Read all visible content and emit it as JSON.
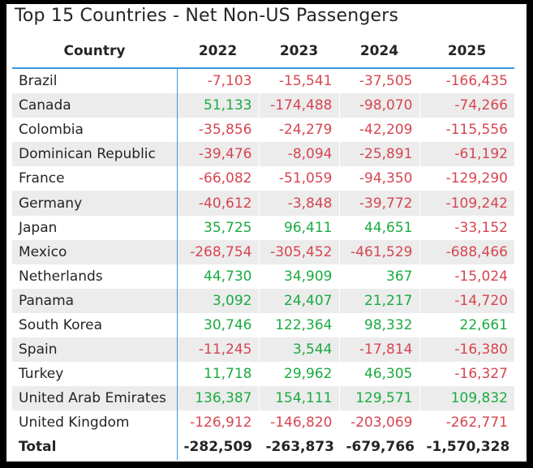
{
  "title": "Top 15 Countries - Net Non-US Passengers",
  "colors": {
    "positive": "#1aab40",
    "negative": "#d64550",
    "accent": "#3a96dd",
    "alt_row": "#ececec"
  },
  "columns": [
    "Country",
    "2022",
    "2023",
    "2024",
    "2025"
  ],
  "rows": [
    {
      "country": "Brazil",
      "values": [
        "-7,103",
        "-15,541",
        "-37,505",
        "-166,435"
      ]
    },
    {
      "country": "Canada",
      "values": [
        "51,133",
        "-174,488",
        "-98,070",
        "-74,266"
      ]
    },
    {
      "country": "Colombia",
      "values": [
        "-35,856",
        "-24,279",
        "-42,209",
        "-115,556"
      ]
    },
    {
      "country": "Dominican Republic",
      "values": [
        "-39,476",
        "-8,094",
        "-25,891",
        "-61,192"
      ]
    },
    {
      "country": "France",
      "values": [
        "-66,082",
        "-51,059",
        "-94,350",
        "-129,290"
      ]
    },
    {
      "country": "Germany",
      "values": [
        "-40,612",
        "-3,848",
        "-39,772",
        "-109,242"
      ]
    },
    {
      "country": "Japan",
      "values": [
        "35,725",
        "96,411",
        "44,651",
        "-33,152"
      ]
    },
    {
      "country": "Mexico",
      "values": [
        "-268,754",
        "-305,452",
        "-461,529",
        "-688,466"
      ]
    },
    {
      "country": "Netherlands",
      "values": [
        "44,730",
        "34,909",
        "367",
        "-15,024"
      ]
    },
    {
      "country": "Panama",
      "values": [
        "3,092",
        "24,407",
        "21,217",
        "-14,720"
      ]
    },
    {
      "country": "South Korea",
      "values": [
        "30,746",
        "122,364",
        "98,332",
        "22,661"
      ]
    },
    {
      "country": "Spain",
      "values": [
        "-11,245",
        "3,544",
        "-17,814",
        "-16,380"
      ]
    },
    {
      "country": "Turkey",
      "values": [
        "11,718",
        "29,962",
        "46,305",
        "-16,327"
      ]
    },
    {
      "country": "United Arab Emirates",
      "values": [
        "136,387",
        "154,111",
        "129,571",
        "109,832"
      ]
    },
    {
      "country": "United Kingdom",
      "values": [
        "-126,912",
        "-146,820",
        "-203,069",
        "-262,771"
      ]
    }
  ],
  "total": {
    "label": "Total",
    "values": [
      "-282,509",
      "-263,873",
      "-679,766",
      "-1,570,328"
    ]
  }
}
